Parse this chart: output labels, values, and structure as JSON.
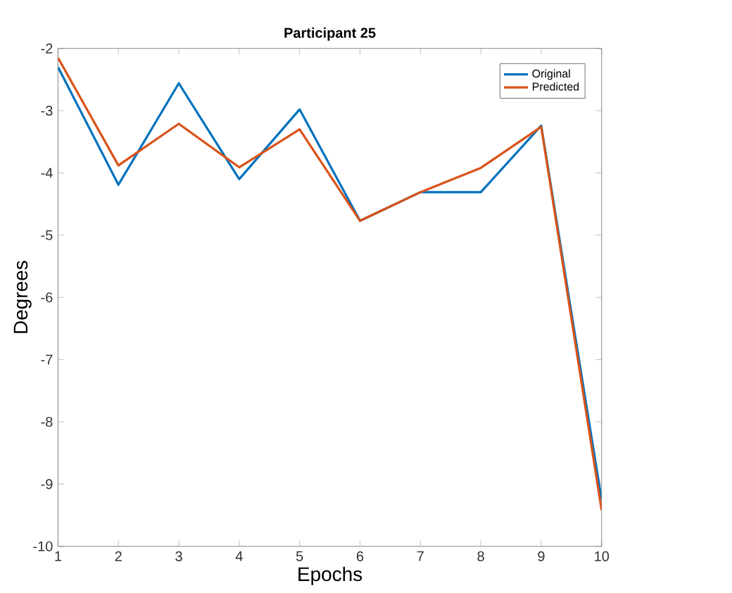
{
  "chart_data": {
    "type": "line",
    "title": "Participant 25",
    "xlabel": "Epochs",
    "ylabel": "Degrees",
    "x": [
      1,
      2,
      3,
      4,
      5,
      6,
      7,
      8,
      9,
      10
    ],
    "series": [
      {
        "name": "Original",
        "color": "#0072bd",
        "values": [
          -2.3,
          -4.19,
          -2.56,
          -4.1,
          -2.98,
          -4.77,
          -4.31,
          -4.31,
          -3.24,
          -9.25
        ]
      },
      {
        "name": "Predicted",
        "color": "#d95319",
        "values": [
          -2.15,
          -3.88,
          -3.21,
          -3.91,
          -3.3,
          -4.77,
          -4.31,
          -3.92,
          -3.26,
          -9.42
        ]
      }
    ],
    "xlim": [
      1,
      10
    ],
    "ylim": [
      -10,
      -2
    ],
    "xticks": [
      1,
      2,
      3,
      4,
      5,
      6,
      7,
      8,
      9,
      10
    ],
    "yticks": [
      -10,
      -9,
      -8,
      -7,
      -6,
      -5,
      -4,
      -3,
      -2
    ],
    "legend": "top right",
    "grid": false,
    "marker": "none",
    "line_style": "solid"
  }
}
